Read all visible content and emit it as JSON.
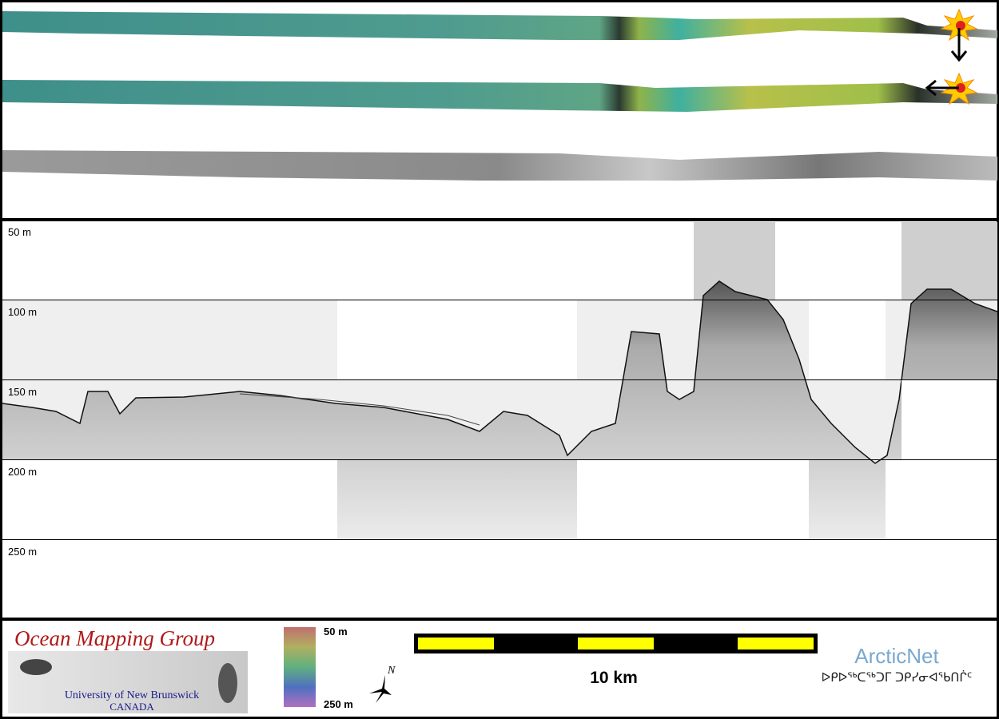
{
  "profile": {
    "depth_labels": [
      "50 m",
      "100 m",
      "150 m",
      "200 m",
      "250 m"
    ]
  },
  "footer": {
    "logo_title": "Ocean Mapping Group",
    "logo_university": "University of New Brunswick",
    "logo_country": "CANADA",
    "colorbar_top": "50 m",
    "colorbar_bottom": "250 m",
    "compass": "N",
    "scale_label": "10 km",
    "partner": "ArcticNet",
    "partner_inuktitut": "ᐅᑭᐅᖅᑕᖅᑐᒥ ᑐᑭᓯᓂᐊᖃᑎᒌᑦ"
  }
}
